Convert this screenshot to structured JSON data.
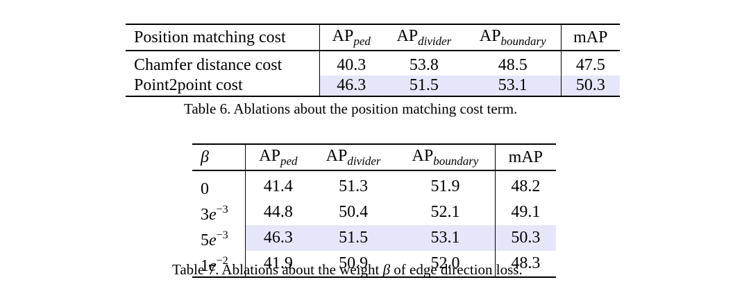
{
  "table6": {
    "header": {
      "col0": "Position matching cost",
      "ap": "AP",
      "sub_ped": "ped",
      "sub_divider": "divider",
      "sub_boundary": "boundary",
      "map": "mAP"
    },
    "rows": [
      {
        "label": "Chamfer distance cost",
        "ped": "40.3",
        "divider": "53.8",
        "boundary": "48.5",
        "map": "47.5"
      },
      {
        "label": "Point2point cost",
        "ped": "46.3",
        "divider": "51.5",
        "boundary": "53.1",
        "map": "50.3"
      }
    ],
    "caption": "Table 6. Ablations about the position matching cost term."
  },
  "table7": {
    "header": {
      "col0": "β",
      "ap": "AP",
      "sub_ped": "ped",
      "sub_divider": "divider",
      "sub_boundary": "boundary",
      "map": "mAP"
    },
    "rows": [
      {
        "base": "0",
        "e": "",
        "exp": "",
        "ped": "41.4",
        "divider": "51.3",
        "boundary": "51.9",
        "map": "48.2"
      },
      {
        "base": "3",
        "e": "e",
        "exp": "−3",
        "ped": "44.8",
        "divider": "50.4",
        "boundary": "52.1",
        "map": "49.1"
      },
      {
        "base": "5",
        "e": "e",
        "exp": "−3",
        "ped": "46.3",
        "divider": "51.5",
        "boundary": "53.1",
        "map": "50.3"
      },
      {
        "base": "1",
        "e": "e",
        "exp": "−2",
        "ped": "41.9",
        "divider": "50.9",
        "boundary": "52.0",
        "map": "48.3"
      }
    ],
    "caption_before": "Table 7. Ablations about the weight ",
    "caption_symbol": "β",
    "caption_after": " of edge direction loss."
  }
}
